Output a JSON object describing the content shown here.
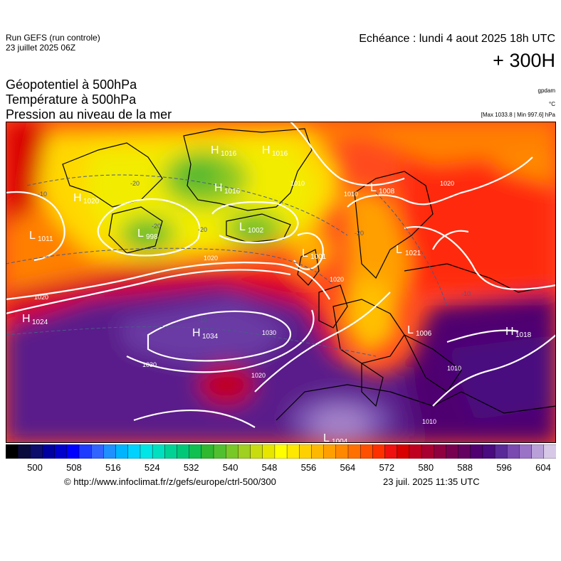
{
  "header": {
    "run": "Run GEFS (run controle)",
    "run_date": "23 juillet 2025 06Z",
    "echeance": "Echéance : lundi 4 aout 2025 18h UTC",
    "lead": "+ 300H"
  },
  "titles": [
    "Géopotentiel à 500hPa",
    "Température à 500hPa",
    "Pression au niveau de la mer"
  ],
  "units": {
    "gpdam": "gpdam",
    "degc": "°C",
    "maxmin": "[Max 1033.8 | Min 997.6] hPa"
  },
  "pressure_labels": [
    {
      "t": "H",
      "n": "1016"
    },
    {
      "t": "H",
      "n": "1016"
    },
    {
      "t": "H",
      "n": "1020"
    },
    {
      "t": "H",
      "n": "1016"
    },
    {
      "t": "L",
      "n": "1011"
    },
    {
      "t": "L",
      "n": "998"
    },
    {
      "t": "L",
      "n": "1002"
    },
    {
      "t": "L",
      "n": "1001"
    },
    {
      "t": "L",
      "n": "1008"
    },
    {
      "t": "L",
      "n": "1021"
    },
    {
      "t": "H",
      "n": "1024"
    },
    {
      "t": "H",
      "n": "1034"
    },
    {
      "t": "L",
      "n": "1006"
    },
    {
      "t": "H",
      "n": "1018"
    },
    {
      "t": "L",
      "n": "1004"
    }
  ],
  "isobar_labels": [
    "1010",
    "1010",
    "1020",
    "1020",
    "1020",
    "1030",
    "1030",
    "1020",
    "1010",
    "1020",
    "1010"
  ],
  "temp_labels": [
    "-20",
    "-20",
    "-20",
    "-20",
    "-10",
    "-10",
    "-10"
  ],
  "colorbar": {
    "ticks": [
      "500",
      "508",
      "516",
      "524",
      "532",
      "540",
      "548",
      "556",
      "564",
      "572",
      "580",
      "588",
      "596",
      "604"
    ],
    "colors": [
      "#000000",
      "#0a0a3c",
      "#0d0d6e",
      "#0000a0",
      "#0000cd",
      "#0000ff",
      "#1e3cff",
      "#3264ff",
      "#1e90ff",
      "#00b4ff",
      "#00d2ff",
      "#00e6e6",
      "#00e0c0",
      "#00d296",
      "#00c878",
      "#10c050",
      "#30b830",
      "#50c030",
      "#78c828",
      "#a0d020",
      "#c8dc10",
      "#e6e600",
      "#ffff00",
      "#ffe800",
      "#ffd000",
      "#ffb800",
      "#ffa000",
      "#ff8800",
      "#ff7000",
      "#ff5000",
      "#ff3000",
      "#f01010",
      "#d80000",
      "#c00020",
      "#a80030",
      "#900040",
      "#780050",
      "#640060",
      "#500070",
      "#4a0a80",
      "#5a2a98",
      "#7a4ab0",
      "#9a72c6",
      "#baa0d8",
      "#d8c8e8"
    ]
  },
  "footer": {
    "url": "© http://www.infoclimat.fr/z/gefs/europe/ctrl-500/300",
    "date": "23 juil. 2025 11:35 UTC"
  }
}
